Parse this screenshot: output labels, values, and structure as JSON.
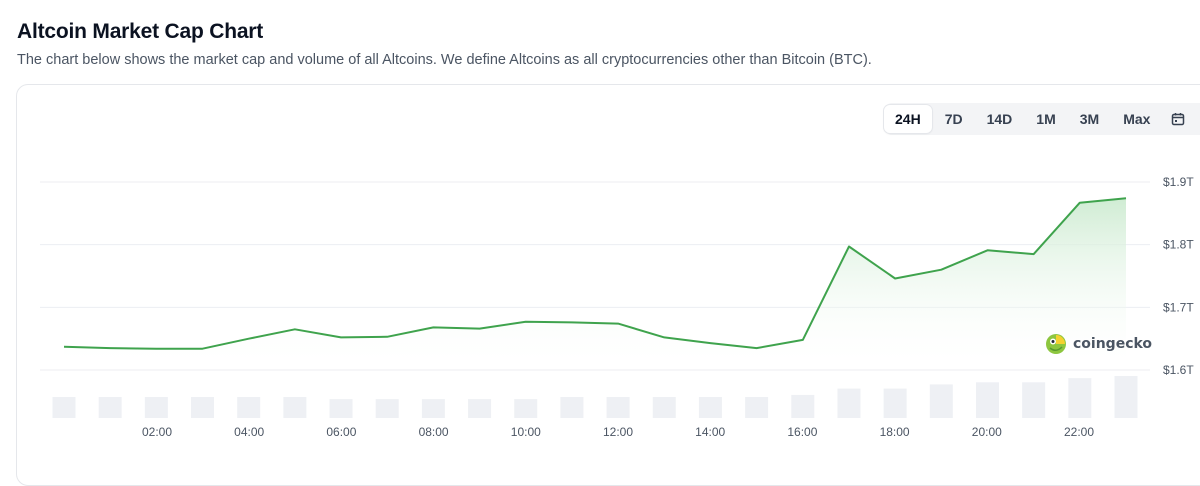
{
  "page": {
    "title": "Altcoin Market Cap Chart",
    "subtitle": "The chart below shows the market cap and volume of all Altcoins. We define Altcoins as all cryptocurrencies other than Bitcoin (BTC)."
  },
  "range_selector": {
    "buttons": [
      "24H",
      "7D",
      "14D",
      "1M",
      "3M",
      "Max"
    ],
    "active": "24H",
    "calendar_icon": "calendar-icon"
  },
  "watermark": {
    "text": "coingecko",
    "icon": "gecko-logo-icon"
  },
  "colors": {
    "line": "#3fa34d",
    "area_top": "#cdebd1",
    "volume_bar": "#eef0f4",
    "grid": "#eceef2",
    "axis_text": "#4b5563"
  },
  "chart_data": {
    "type": "area",
    "x_ticks": [
      "02:00",
      "04:00",
      "06:00",
      "08:00",
      "10:00",
      "12:00",
      "14:00",
      "16:00",
      "18:00",
      "20:00",
      "22:00"
    ],
    "y_ticks": [
      "$1.6T",
      "$1.7T",
      "$1.8T",
      "$1.9T"
    ],
    "y_tick_values": [
      1.6,
      1.7,
      1.8,
      1.9
    ],
    "ylim": [
      1.6,
      1.9
    ],
    "xlim": [
      0.5,
      24
    ],
    "series": [
      {
        "values": [
          [
            1.0,
            1.637
          ],
          [
            2.0,
            1.635
          ],
          [
            3.0,
            1.634
          ],
          [
            4.0,
            1.634
          ],
          [
            5.0,
            1.65
          ],
          [
            6.0,
            1.665
          ],
          [
            7.0,
            1.652
          ],
          [
            8.0,
            1.653
          ],
          [
            9.0,
            1.668
          ],
          [
            10.0,
            1.666
          ],
          [
            11.0,
            1.677
          ],
          [
            12.0,
            1.676
          ],
          [
            13.0,
            1.674
          ],
          [
            14.0,
            1.652
          ],
          [
            15.0,
            1.643
          ],
          [
            16.0,
            1.635
          ],
          [
            17.0,
            1.648
          ],
          [
            18.0,
            1.797
          ],
          [
            19.0,
            1.746
          ],
          [
            20.0,
            1.76
          ],
          [
            21.0,
            1.791
          ],
          [
            22.0,
            1.785
          ],
          [
            23.0,
            1.867
          ],
          [
            24.0,
            1.874
          ]
        ]
      }
    ],
    "volume": [
      5,
      5,
      5,
      5,
      5,
      5,
      4.5,
      4.5,
      4.5,
      4.5,
      4.5,
      5,
      5,
      5,
      5,
      5,
      5.5,
      7,
      7,
      8,
      8.5,
      8.5,
      9.5,
      10
    ],
    "grid": true,
    "legend": "none"
  }
}
